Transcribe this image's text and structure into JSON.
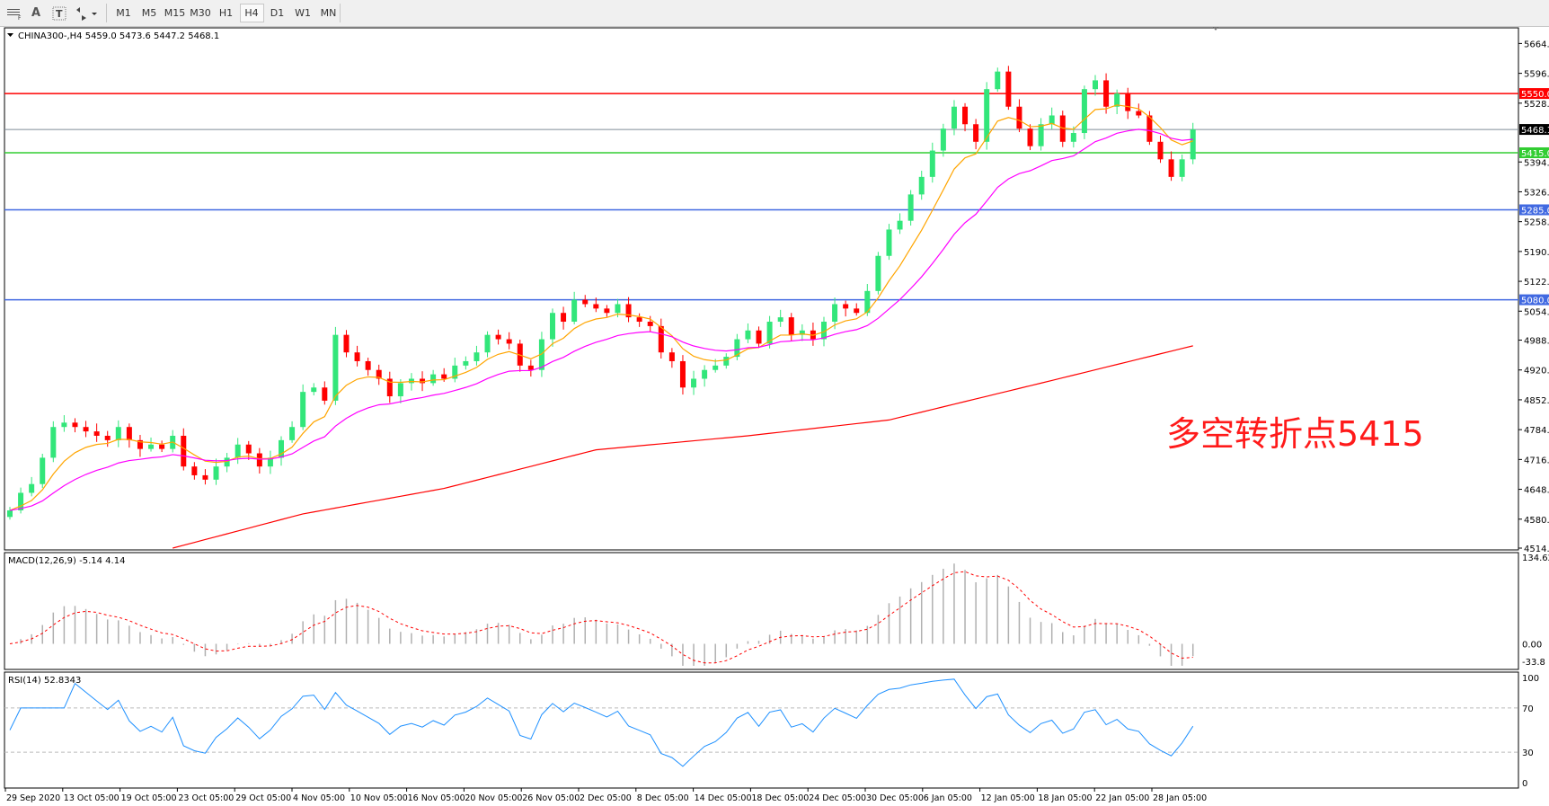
{
  "toolbar": {
    "icons": [
      "grid-f-icon",
      "text-a-icon",
      "text-label-icon",
      "arrows-icon"
    ],
    "timeframes": [
      "M1",
      "M5",
      "M15",
      "M30",
      "H1",
      "H4",
      "D1",
      "W1",
      "MN"
    ],
    "active_timeframe": "H4"
  },
  "chart_header": "CHINA300-,H4  5459.0 5473.6 5447.2 5468.1",
  "annotation": "多空转折点5415",
  "chart_data": {
    "type": "candlestick",
    "symbol": "CHINA300-",
    "timeframe": "H4",
    "ylim": [
      4514,
      5664
    ],
    "y_ticks": [
      "5664.0",
      "5596.0",
      "5528.0",
      "5394.0",
      "5326.0",
      "5258.0",
      "5190.0",
      "5122.0",
      "5054.0",
      "4988.0",
      "4920.0",
      "4852.0",
      "4784.0",
      "4716.0",
      "4648.0",
      "4580.0",
      "4514.0"
    ],
    "x_ticks": [
      "29 Sep 2020",
      "13 Oct 05:00",
      "19 Oct 05:00",
      "23 Oct 05:00",
      "29 Oct 05:00",
      "4 Nov 05:00",
      "10 Nov 05:00",
      "16 Nov 05:00",
      "20 Nov 05:00",
      "26 Nov 05:00",
      "2 Dec 05:00",
      "8 Dec 05:00",
      "14 Dec 05:00",
      "18 Dec 05:00",
      "24 Dec 05:00",
      "30 Dec 05:00",
      "6 Jan 05:00",
      "12 Jan 05:00",
      "18 Jan 05:00",
      "22 Jan 05:00",
      "28 Jan 05:00"
    ],
    "close": [
      4600,
      4640,
      4660,
      4720,
      4790,
      4800,
      4790,
      4780,
      4770,
      4760,
      4790,
      4760,
      4740,
      4750,
      4740,
      4770,
      4700,
      4680,
      4670,
      4700,
      4720,
      4750,
      4730,
      4700,
      4720,
      4760,
      4790,
      4870,
      4880,
      4850,
      5000,
      4960,
      4940,
      4920,
      4900,
      4860,
      4890,
      4900,
      4890,
      4910,
      4900,
      4930,
      4940,
      4960,
      5000,
      4990,
      4980,
      4930,
      4920,
      4990,
      5050,
      5030,
      5080,
      5070,
      5060,
      5050,
      5070,
      5040,
      5030,
      5020,
      4960,
      4940,
      4880,
      4900,
      4920,
      4930,
      4950,
      4990,
      5010,
      4980,
      5030,
      5040,
      5000,
      5010,
      4990,
      5030,
      5070,
      5060,
      5050,
      5100,
      5180,
      5240,
      5260,
      5320,
      5360,
      5420,
      5470,
      5520,
      5480,
      5440,
      5560,
      5600,
      5520,
      5470,
      5430,
      5480,
      5500,
      5440,
      5460,
      5560,
      5580,
      5520,
      5550,
      5510,
      5500,
      5440,
      5400,
      5360,
      5400,
      5468.1
    ],
    "ma_slow_points": [
      [
        15,
        4514
      ],
      [
        27,
        4592
      ],
      [
        40,
        4650
      ],
      [
        54,
        4738
      ],
      [
        68,
        4770
      ],
      [
        81,
        4806
      ],
      [
        95,
        4890
      ],
      [
        109,
        4975
      ]
    ],
    "levels": [
      {
        "price": 5550.0,
        "label": "5550.0",
        "color": "#ff0000"
      },
      {
        "price": 5468.1,
        "label": "5468.1",
        "color": "#7f8c99",
        "tag_color": "#000000"
      },
      {
        "price": 5415.0,
        "label": "5415.0",
        "color": "#32cd32"
      },
      {
        "price": 5285.0,
        "label": "5285.0",
        "color": "#4169e1"
      },
      {
        "price": 5080.0,
        "label": "5080.0",
        "color": "#4169e1"
      }
    ],
    "colors": {
      "up": "#32e67a",
      "down": "#ff0000",
      "ma_fast": "#ffa500",
      "ma_mid": "#ff00ff",
      "ma_slow": "#ff0000"
    },
    "macd": {
      "label": "MACD(12,26,9) -5.14 4.14",
      "ylim": [
        -33.8,
        134.62
      ],
      "ticks": [
        "134.62",
        "0.00",
        "-33.8"
      ]
    },
    "rsi": {
      "label": "RSI(14) 52.8343",
      "ylim": [
        0,
        100
      ],
      "ticks": [
        "100",
        "70",
        "30",
        "0"
      ],
      "levels": [
        70,
        30
      ],
      "color": "#1e90ff"
    }
  }
}
